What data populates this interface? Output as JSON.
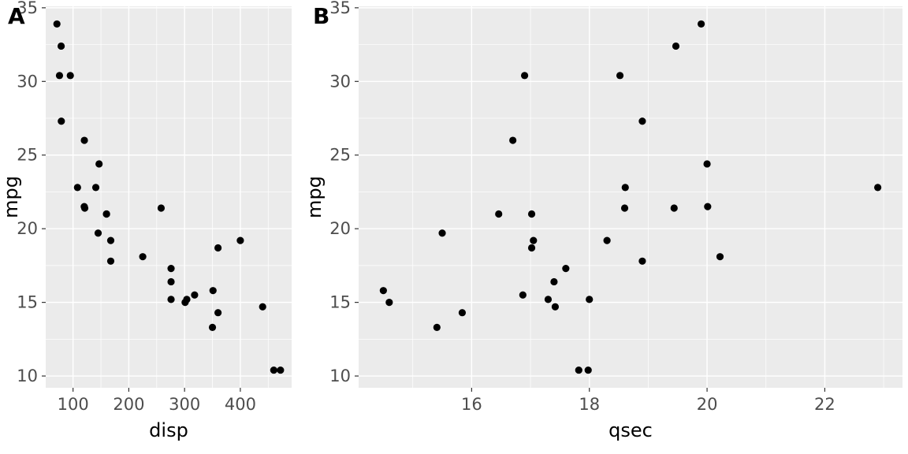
{
  "figure": {
    "background": "#FFFFFF",
    "panel_background": "#EBEBEB",
    "grid_color": "#FFFFFF",
    "point_color": "#000000",
    "tick_label_color": "#4D4D4D",
    "tick_mark_color": "#333333",
    "axis_title_color": "#000000"
  },
  "chart_data": [
    {
      "type": "scatter",
      "title": "A",
      "xlabel": "disp",
      "ylabel": "mpg",
      "xlim": [
        51,
        492
      ],
      "ylim": [
        9.2,
        35.1
      ],
      "x_ticks": [
        100,
        200,
        300,
        400
      ],
      "y_ticks": [
        10,
        15,
        20,
        25,
        30,
        35
      ],
      "x_minor": [
        150,
        250,
        350,
        450
      ],
      "y_minor": [
        12.5,
        17.5,
        22.5,
        27.5,
        32.5
      ],
      "grid": true,
      "legend": "none",
      "points": [
        [
          160,
          21.0
        ],
        [
          160,
          21.0
        ],
        [
          108,
          22.8
        ],
        [
          258,
          21.4
        ],
        [
          360,
          18.7
        ],
        [
          225,
          18.1
        ],
        [
          360,
          14.3
        ],
        [
          146.7,
          24.4
        ],
        [
          140.8,
          22.8
        ],
        [
          167.6,
          19.2
        ],
        [
          167.6,
          17.8
        ],
        [
          275.8,
          16.4
        ],
        [
          275.8,
          17.3
        ],
        [
          275.8,
          15.2
        ],
        [
          472,
          10.4
        ],
        [
          460,
          10.4
        ],
        [
          440,
          14.7
        ],
        [
          78.7,
          32.4
        ],
        [
          75.7,
          30.4
        ],
        [
          71.1,
          33.9
        ],
        [
          120.1,
          21.5
        ],
        [
          318,
          15.5
        ],
        [
          304,
          15.2
        ],
        [
          350,
          13.3
        ],
        [
          400,
          19.2
        ],
        [
          79,
          27.3
        ],
        [
          120.3,
          26.0
        ],
        [
          95.1,
          30.4
        ],
        [
          351,
          15.8
        ],
        [
          145,
          19.7
        ],
        [
          301,
          15.0
        ],
        [
          121,
          21.4
        ]
      ]
    },
    {
      "type": "scatter",
      "title": "B",
      "xlabel": "qsec",
      "ylabel": "mpg",
      "xlim": [
        14.08,
        23.32
      ],
      "ylim": [
        9.2,
        35.1
      ],
      "x_ticks": [
        16,
        18,
        20,
        22
      ],
      "y_ticks": [
        10,
        15,
        20,
        25,
        30,
        35
      ],
      "x_minor": [
        15,
        17,
        19,
        21,
        23
      ],
      "y_minor": [
        12.5,
        17.5,
        22.5,
        27.5,
        32.5
      ],
      "grid": true,
      "legend": "none",
      "points": [
        [
          16.46,
          21.0
        ],
        [
          17.02,
          21.0
        ],
        [
          18.61,
          22.8
        ],
        [
          19.44,
          21.4
        ],
        [
          17.02,
          18.7
        ],
        [
          20.22,
          18.1
        ],
        [
          15.84,
          14.3
        ],
        [
          20.0,
          24.4
        ],
        [
          22.9,
          22.8
        ],
        [
          18.3,
          19.2
        ],
        [
          18.9,
          17.8
        ],
        [
          17.4,
          16.4
        ],
        [
          17.6,
          17.3
        ],
        [
          18.0,
          15.2
        ],
        [
          17.98,
          10.4
        ],
        [
          17.82,
          10.4
        ],
        [
          17.42,
          14.7
        ],
        [
          19.47,
          32.4
        ],
        [
          18.52,
          30.4
        ],
        [
          19.9,
          33.9
        ],
        [
          20.01,
          21.5
        ],
        [
          16.87,
          15.5
        ],
        [
          17.3,
          15.2
        ],
        [
          15.41,
          13.3
        ],
        [
          17.05,
          19.2
        ],
        [
          18.9,
          27.3
        ],
        [
          16.7,
          26.0
        ],
        [
          16.9,
          30.4
        ],
        [
          14.5,
          15.8
        ],
        [
          15.5,
          19.7
        ],
        [
          14.6,
          15.0
        ],
        [
          18.6,
          21.4
        ]
      ]
    }
  ]
}
